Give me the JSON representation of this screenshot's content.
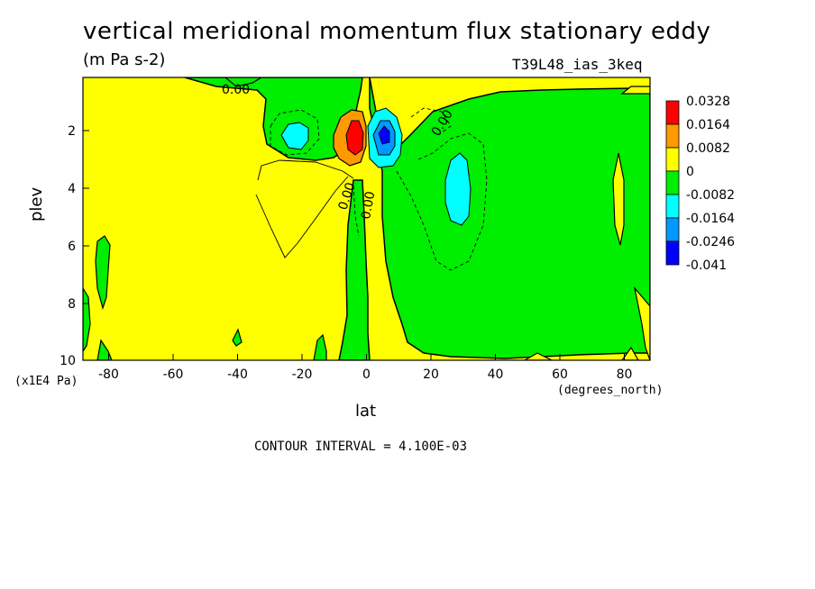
{
  "chart_data": {
    "type": "heatmap",
    "title": "vertical meridional momentum flux stationary eddy",
    "units": "(m Pa s-2)",
    "run_id": "T39L48_ias_3keq",
    "xlabel": "lat",
    "x_units": "(degrees_north)",
    "ylabel": "plev",
    "y_units": "(x1E4 Pa)",
    "xlim": [
      -88,
      88
    ],
    "ylim": [
      10,
      0.2
    ],
    "x_ticks": [
      "-80",
      "-60",
      "-40",
      "-20",
      "0",
      "20",
      "40",
      "60",
      "80"
    ],
    "y_ticks": [
      "2",
      "4",
      "6",
      "8",
      "10"
    ],
    "contour_interval": "CONTOUR INTERVAL = 4.100E-03",
    "contour_labels": [
      "0.00",
      "0.00",
      "0.00",
      "0.00"
    ],
    "colorbar": {
      "labels": [
        "0.0328",
        "0.0164",
        "0.0082",
        "0",
        "-0.0082",
        "-0.0164",
        "-0.0246",
        "-0.041"
      ],
      "colors": [
        "#ff0000",
        "#ff9900",
        "#ffff00",
        "#00ee00",
        "#00ffff",
        "#0099ff",
        "#0000ff"
      ]
    },
    "features": [
      {
        "lat": -5,
        "plev": 2.2,
        "value": 0.033,
        "label": "positive maximum"
      },
      {
        "lat": 5,
        "plev": 2.2,
        "value": -0.02,
        "label": "negative minimum"
      },
      {
        "lat": -25,
        "plev": 2.1,
        "value": -0.012
      },
      {
        "lat": 28,
        "plev": 4.0,
        "value": -0.012
      }
    ]
  }
}
